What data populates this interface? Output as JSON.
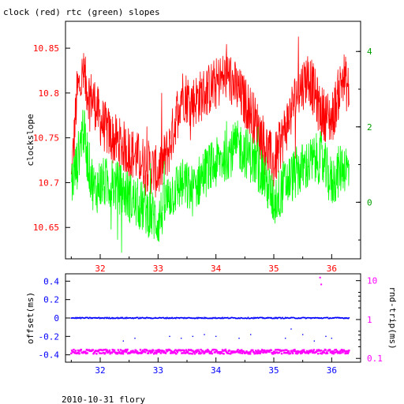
{
  "title": "clock (red) rtc (green) slopes",
  "footer": "2010-10-31 flory",
  "colors": {
    "clock": "#ff0000",
    "rtc": "#00ff00",
    "offset": "#0000ff",
    "rnd_trip": "#ff00ff",
    "axis": "#000000"
  },
  "chart_data": [
    {
      "type": "line",
      "title": "clock (red) rtc (green) slopes",
      "xlabel": "",
      "ylabel": "clockslope",
      "xlim": [
        31.4,
        36.5
      ],
      "ylim_left": [
        10.615,
        10.88
      ],
      "ylim_right": [
        -1.5,
        4.8
      ],
      "x_ticks": [
        32,
        33,
        34,
        35,
        36
      ],
      "y_ticks_left": [
        10.65,
        10.7,
        10.75,
        10.8,
        10.85
      ],
      "y_ticks_right": [
        0,
        2,
        4
      ],
      "series": [
        {
          "name": "clock (red)",
          "axis": "left",
          "x": [
            31.5,
            31.6,
            31.7,
            31.8,
            31.9,
            32.0,
            32.2,
            32.4,
            32.6,
            32.8,
            33.0,
            33.2,
            33.4,
            33.6,
            33.8,
            34.0,
            34.2,
            34.4,
            34.6,
            34.8,
            35.0,
            35.2,
            35.4,
            35.6,
            35.8,
            36.0,
            36.2,
            36.3
          ],
          "y": [
            10.7,
            10.8,
            10.82,
            10.8,
            10.79,
            10.77,
            10.75,
            10.74,
            10.73,
            10.72,
            10.71,
            10.74,
            10.8,
            10.79,
            10.8,
            10.81,
            10.82,
            10.8,
            10.78,
            10.75,
            10.72,
            10.76,
            10.8,
            10.82,
            10.78,
            10.77,
            10.82,
            10.8
          ]
        },
        {
          "name": "rtc (green)",
          "axis": "right",
          "x": [
            31.5,
            31.6,
            31.7,
            31.8,
            31.9,
            32.0,
            32.2,
            32.4,
            32.6,
            32.8,
            33.0,
            33.2,
            33.4,
            33.6,
            33.8,
            34.0,
            34.2,
            34.4,
            34.6,
            34.8,
            35.0,
            35.2,
            35.4,
            35.6,
            35.8,
            36.0,
            36.2,
            36.3
          ],
          "y": [
            0.5,
            1.0,
            2.0,
            1.0,
            0.3,
            0.5,
            0.5,
            0.3,
            0.0,
            -0.2,
            -0.5,
            0.2,
            0.5,
            0.3,
            0.8,
            1.0,
            1.3,
            1.5,
            1.2,
            0.8,
            0.0,
            0.5,
            0.8,
            1.0,
            1.2,
            0.5,
            1.0,
            0.8
          ]
        }
      ]
    },
    {
      "type": "scatter",
      "xlabel": "",
      "ylabel_left": "offset(ms)",
      "ylabel_right": "rnd-trip(ms)",
      "xlim": [
        31.4,
        36.5
      ],
      "ylim_left": [
        -0.48,
        0.48
      ],
      "ylim_right_log": [
        0.08,
        15
      ],
      "right_scale": "log",
      "x_ticks": [
        32,
        33,
        34,
        35,
        36
      ],
      "y_ticks_left": [
        -0.4,
        -0.2,
        0,
        0.2,
        0.4
      ],
      "y_tick_labels_left": [
        "-0.4",
        "-0.2",
        "0",
        "0.2",
        "0.4"
      ],
      "y_ticks_right": [
        0.1,
        1,
        10
      ],
      "y_tick_labels_right": [
        "0.1",
        "1",
        "10"
      ],
      "series": [
        {
          "name": "offset",
          "axis": "left",
          "x_range": [
            31.5,
            36.3
          ],
          "value": 0.0
        },
        {
          "name": "rnd-trip",
          "axis": "right",
          "x_range": [
            31.5,
            36.3
          ],
          "value": 0.15,
          "outliers": [
            {
              "x": 35.8,
              "y": 12
            },
            {
              "x": 35.82,
              "y": 8
            }
          ]
        },
        {
          "name": "offset-outliers",
          "axis": "left",
          "points": [
            {
              "x": 32.4,
              "y": -0.25
            },
            {
              "x": 32.6,
              "y": -0.22
            },
            {
              "x": 33.2,
              "y": -0.2
            },
            {
              "x": 33.4,
              "y": -0.22
            },
            {
              "x": 33.6,
              "y": -0.2
            },
            {
              "x": 33.8,
              "y": -0.18
            },
            {
              "x": 34.0,
              "y": -0.2
            },
            {
              "x": 34.4,
              "y": -0.22
            },
            {
              "x": 34.6,
              "y": -0.18
            },
            {
              "x": 35.2,
              "y": -0.22
            },
            {
              "x": 35.3,
              "y": -0.12
            },
            {
              "x": 35.5,
              "y": -0.18
            },
            {
              "x": 35.7,
              "y": -0.25
            },
            {
              "x": 35.9,
              "y": -0.2
            },
            {
              "x": 36.0,
              "y": -0.22
            }
          ]
        }
      ]
    }
  ]
}
